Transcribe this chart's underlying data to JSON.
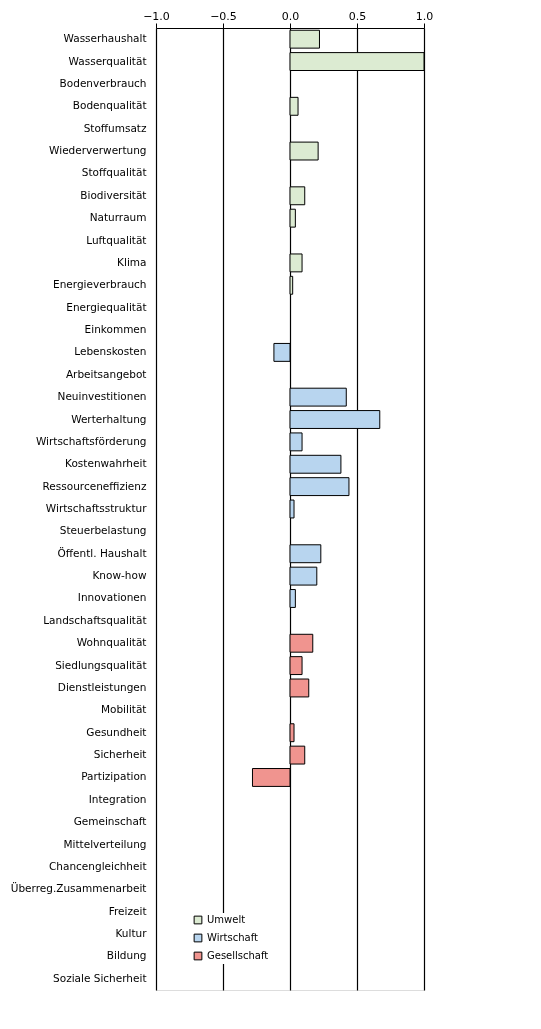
{
  "chart_data": {
    "type": "bar",
    "orientation": "horizontal",
    "categories": [
      "Wasserhaushalt",
      "Wasserqualität",
      "Bodenverbrauch",
      "Bodenqualität",
      "Stoffumsatz",
      "Wiederverwertung",
      "Stoffqualität",
      "Biodiversität",
      "Naturraum",
      "Luftqualität",
      "Klima",
      "Energieverbrauch",
      "Energiequalität",
      "Einkommen",
      "Lebenskosten",
      "Arbeitsangebot",
      "Neuinvestitionen",
      "Werterhaltung",
      "Wirtschaftsförderung",
      "Kostenwahrheit",
      "Ressourceneffizienz",
      "Wirtschaftsstruktur",
      "Steuerbelastung",
      "Öffentl. Haushalt",
      "Know-how",
      "Innovationen",
      "Landschaftsqualität",
      "Wohnqualität",
      "Siedlungsqualität",
      "Dienstleistungen",
      "Mobilität",
      "Gesundheit",
      "Sicherheit",
      "Partizipation",
      "Integration",
      "Gemeinschaft",
      "Mittelverteilung",
      "Chancengleichheit",
      "Überreg.Zusammenarbeit",
      "Freizeit",
      "Kultur",
      "Bildung",
      "Soziale Sicherheit"
    ],
    "series": [
      {
        "name": "Umwelt",
        "color": "#dcebd2",
        "values": [
          0.22,
          1.0,
          null,
          0.06,
          null,
          0.21,
          null,
          0.11,
          0.04,
          null,
          0.09,
          0.02,
          null,
          null,
          null,
          null,
          null,
          null,
          null,
          null,
          null,
          null,
          null,
          null,
          null,
          null,
          null,
          null,
          null,
          null,
          null,
          null,
          null,
          null,
          null,
          null,
          null,
          null,
          null,
          null,
          null,
          null,
          null
        ]
      },
      {
        "name": "Wirtschaft",
        "color": "#b8d5ef",
        "values": [
          null,
          null,
          null,
          null,
          null,
          null,
          null,
          null,
          null,
          null,
          null,
          null,
          null,
          null,
          -0.12,
          null,
          0.42,
          0.67,
          0.09,
          0.38,
          0.44,
          0.03,
          null,
          0.23,
          0.2,
          0.04,
          null,
          null,
          null,
          null,
          null,
          null,
          null,
          null,
          null,
          null,
          null,
          null,
          null,
          null,
          null,
          null,
          null
        ]
      },
      {
        "name": "Gesellschaft",
        "color": "#f0948f",
        "values": [
          null,
          null,
          null,
          null,
          null,
          null,
          null,
          null,
          null,
          null,
          null,
          null,
          null,
          null,
          null,
          null,
          null,
          null,
          null,
          null,
          null,
          null,
          null,
          null,
          null,
          null,
          null,
          0.17,
          0.09,
          0.14,
          null,
          0.03,
          0.11,
          -0.28,
          null,
          null,
          null,
          null,
          null,
          null,
          null,
          null,
          null
        ]
      }
    ],
    "xlim": [
      -1.0,
      1.0
    ],
    "xticks": [
      {
        "value": -1.0,
        "label": "−1.0"
      },
      {
        "value": -0.5,
        "label": "−0.5"
      },
      {
        "value": 0.0,
        "label": "0.0"
      },
      {
        "value": 0.5,
        "label": "0.5"
      },
      {
        "value": 1.0,
        "label": "1.0"
      }
    ],
    "grid": "x",
    "legend": "bottom left"
  }
}
